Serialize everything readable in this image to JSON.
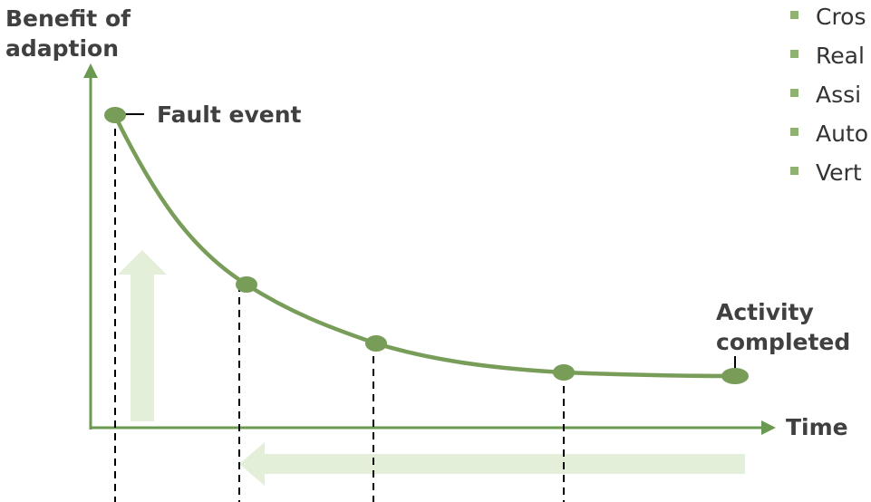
{
  "labels": {
    "y_axis": [
      "Benefit of",
      "adaption"
    ],
    "x_axis": "Time",
    "fault_event": "Fault event",
    "activity_completed": [
      "Activity",
      "completed"
    ]
  },
  "bullets": [
    "Cros",
    "Real",
    "Assi",
    "Auto",
    "Vert"
  ],
  "colors": {
    "curve": "#789d59",
    "axis": "#6a9a4f",
    "arrows_light": "#e3efd8",
    "bullet_marker": "#8fb270",
    "text": "#404040"
  }
}
